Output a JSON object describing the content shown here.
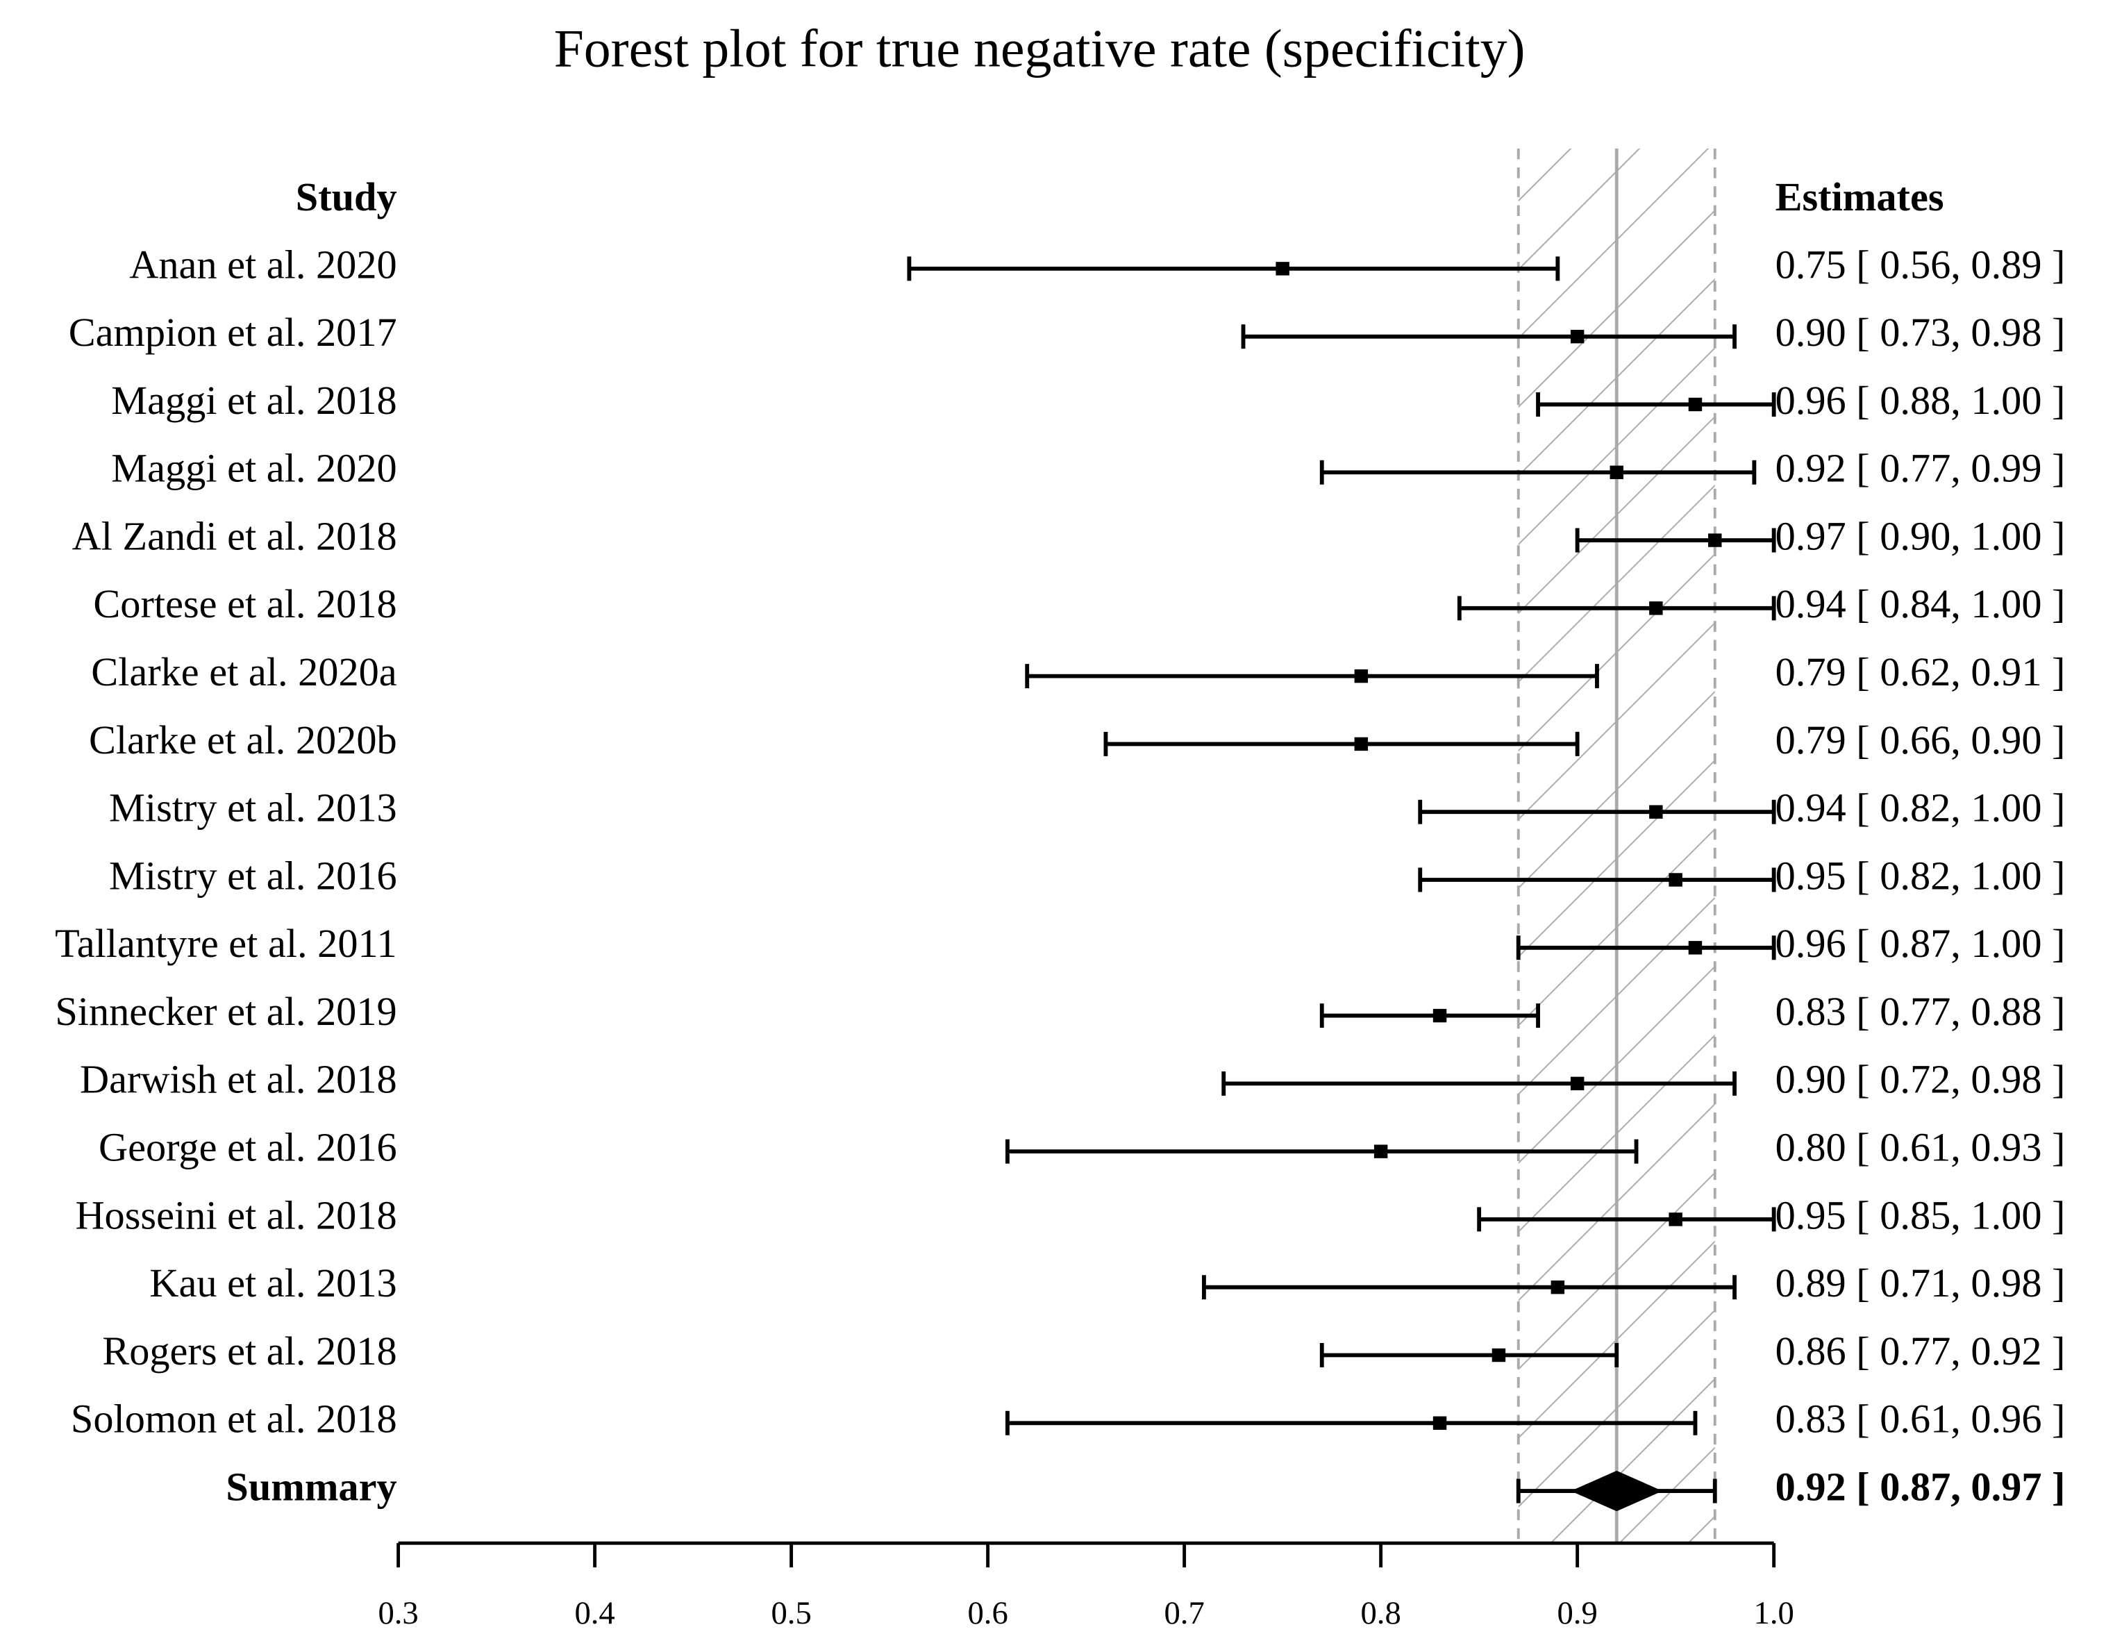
{
  "chart_data": {
    "type": "forest",
    "title": "Forest plot for true negative rate (specificity)",
    "study_header": "Study",
    "estimate_header": "Estimates",
    "categories": [
      "Anan et al. 2020",
      "Campion et al. 2017",
      "Maggi et al. 2018",
      "Maggi et al. 2020",
      "Al Zandi et al. 2018",
      "Cortese et al. 2018",
      "Clarke et al. 2020a",
      "Clarke et al. 2020b",
      "Mistry et al. 2013",
      "Mistry et al. 2016",
      "Tallantyre et al. 2011",
      "Sinnecker et al. 2019",
      "Darwish et al. 2018",
      "George et al. 2016",
      "Hosseini et al. 2018",
      "Kau et al. 2013",
      "Rogers et al. 2018",
      "Solomon et al. 2018"
    ],
    "values": [
      0.75,
      0.9,
      0.96,
      0.92,
      0.97,
      0.94,
      0.79,
      0.79,
      0.94,
      0.95,
      0.96,
      0.83,
      0.9,
      0.8,
      0.95,
      0.89,
      0.86,
      0.83
    ],
    "lower": [
      0.56,
      0.73,
      0.88,
      0.77,
      0.9,
      0.84,
      0.62,
      0.66,
      0.82,
      0.82,
      0.87,
      0.77,
      0.72,
      0.61,
      0.85,
      0.71,
      0.77,
      0.61
    ],
    "upper": [
      0.89,
      0.98,
      1.0,
      0.99,
      1.0,
      1.0,
      0.91,
      0.9,
      1.0,
      1.0,
      1.0,
      0.88,
      0.98,
      0.93,
      1.0,
      0.98,
      0.92,
      0.96
    ],
    "value_labels": [
      "0.75 [ 0.56, 0.89 ]",
      "0.90 [ 0.73, 0.98 ]",
      "0.96 [ 0.88, 1.00 ]",
      "0.92 [ 0.77, 0.99 ]",
      "0.97 [ 0.90, 1.00 ]",
      "0.94 [ 0.84, 1.00 ]",
      "0.79 [ 0.62, 0.91 ]",
      "0.79 [ 0.66, 0.90 ]",
      "0.94 [ 0.82, 1.00 ]",
      "0.95 [ 0.82, 1.00 ]",
      "0.96 [ 0.87, 1.00 ]",
      "0.83 [ 0.77, 0.88 ]",
      "0.90 [ 0.72, 0.98 ]",
      "0.80 [ 0.61, 0.93 ]",
      "0.95 [ 0.85, 1.00 ]",
      "0.89 [ 0.71, 0.98 ]",
      "0.86 [ 0.77, 0.92 ]",
      "0.83 [ 0.61, 0.96 ]"
    ],
    "summary": {
      "name": "Summary",
      "value": 0.92,
      "lower": 0.87,
      "upper": 0.97,
      "value_label": "0.92 [ 0.87, 0.97 ]"
    },
    "color": "#000000",
    "xlim": [
      0.3,
      1.0
    ],
    "xticks": [
      0.3,
      0.4,
      0.5,
      0.6,
      0.7,
      0.8,
      0.9,
      {
        "value": 1.0,
        "label": "1.0"
      }
    ]
  }
}
